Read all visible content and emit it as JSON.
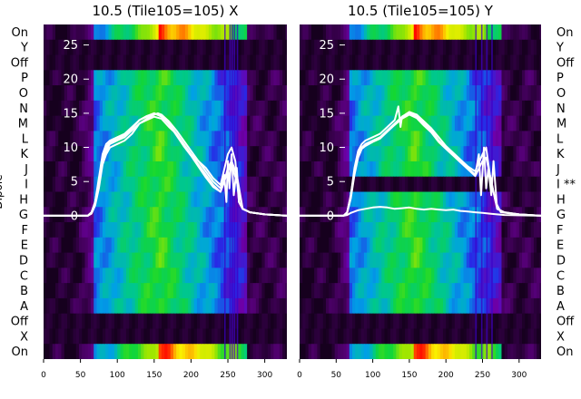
{
  "chart_data": [
    {
      "type": "heatmap",
      "title": "10.5 (Tile105=105) X",
      "ylabel": "Dipole",
      "xlim": [
        0,
        330
      ],
      "x_ticks": [
        0,
        50,
        100,
        150,
        200,
        250,
        300
      ],
      "ylim": [
        -21,
        28
      ],
      "y_ticks": [
        0,
        5,
        10,
        15,
        20,
        25
      ],
      "left_row_labels": [
        "On",
        "Y",
        "Off",
        "P",
        "O",
        "N",
        "M",
        "L",
        "K",
        "J",
        "I",
        "H",
        "G",
        "F",
        "E",
        "D",
        "C",
        "B",
        "A",
        "Off",
        "X",
        "On"
      ],
      "right_row_labels": [],
      "dark_rows": [
        1,
        2,
        19,
        20
      ],
      "spectrum_shape": {
        "start": 65,
        "peak": 155,
        "end": 275
      },
      "spike_channels": [
        245,
        252,
        255,
        258,
        262
      ],
      "series": [
        {
          "values": [
            [
              0,
              0
            ],
            [
              40,
              0
            ],
            [
              60,
              0
            ],
            [
              65,
              0.5
            ],
            [
              70,
              2
            ],
            [
              75,
              5
            ],
            [
              80,
              8
            ],
            [
              85,
              9.5
            ],
            [
              90,
              10.5
            ],
            [
              100,
              11
            ],
            [
              110,
              11.5
            ],
            [
              120,
              12.5
            ],
            [
              130,
              13.5
            ],
            [
              140,
              14.2
            ],
            [
              150,
              14.8
            ],
            [
              155,
              15
            ],
            [
              160,
              14.8
            ],
            [
              170,
              13.8
            ],
            [
              180,
              12.5
            ],
            [
              190,
              11
            ],
            [
              200,
              9.5
            ],
            [
              210,
              8
            ],
            [
              220,
              6.5
            ],
            [
              230,
              5
            ],
            [
              240,
              4
            ],
            [
              245,
              6
            ],
            [
              248,
              2
            ],
            [
              250,
              8
            ],
            [
              252,
              4
            ],
            [
              255,
              9
            ],
            [
              258,
              3
            ],
            [
              262,
              7
            ],
            [
              265,
              2
            ],
            [
              270,
              1
            ],
            [
              280,
              0.5
            ],
            [
              300,
              0.2
            ],
            [
              330,
              0
            ]
          ]
        },
        {
          "values": [
            [
              0,
              0
            ],
            [
              40,
              0
            ],
            [
              60,
              0
            ],
            [
              65,
              0.5
            ],
            [
              70,
              2
            ],
            [
              75,
              5.5
            ],
            [
              80,
              9
            ],
            [
              85,
              10.5
            ],
            [
              90,
              11
            ],
            [
              100,
              11.5
            ],
            [
              110,
              12
            ],
            [
              120,
              13
            ],
            [
              130,
              14
            ],
            [
              140,
              14.5
            ],
            [
              150,
              15
            ],
            [
              160,
              14.5
            ],
            [
              170,
              13.5
            ],
            [
              180,
              12
            ],
            [
              190,
              10.5
            ],
            [
              200,
              9
            ],
            [
              210,
              7.5
            ],
            [
              220,
              6
            ],
            [
              230,
              4.5
            ],
            [
              240,
              3.5
            ],
            [
              245,
              5
            ],
            [
              250,
              7
            ],
            [
              255,
              8
            ],
            [
              262,
              6
            ],
            [
              270,
              1
            ],
            [
              280,
              0.5
            ],
            [
              300,
              0.2
            ],
            [
              330,
              0
            ]
          ]
        },
        {
          "values": [
            [
              0,
              0
            ],
            [
              40,
              0
            ],
            [
              60,
              0
            ],
            [
              65,
              0.3
            ],
            [
              70,
              1.5
            ],
            [
              75,
              4
            ],
            [
              80,
              7.5
            ],
            [
              85,
              9
            ],
            [
              90,
              10
            ],
            [
              100,
              10.5
            ],
            [
              110,
              11
            ],
            [
              120,
              12
            ],
            [
              130,
              13.5
            ],
            [
              140,
              14
            ],
            [
              150,
              14.5
            ],
            [
              160,
              14.2
            ],
            [
              170,
              13
            ],
            [
              180,
              12
            ],
            [
              190,
              10.5
            ],
            [
              200,
              9
            ],
            [
              210,
              8
            ],
            [
              220,
              7
            ],
            [
              230,
              5.5
            ],
            [
              240,
              4.5
            ],
            [
              250,
              9
            ],
            [
              255,
              10
            ],
            [
              260,
              8
            ],
            [
              265,
              2
            ],
            [
              270,
              1
            ],
            [
              280,
              0.5
            ],
            [
              300,
              0.2
            ],
            [
              330,
              0
            ]
          ]
        },
        {
          "values": [
            [
              0,
              0
            ],
            [
              40,
              0
            ],
            [
              60,
              0
            ],
            [
              65,
              0.4
            ],
            [
              70,
              2
            ],
            [
              75,
              5
            ],
            [
              80,
              8.5
            ],
            [
              85,
              10
            ],
            [
              90,
              10.8
            ],
            [
              100,
              11.2
            ],
            [
              110,
              11.8
            ],
            [
              120,
              12.8
            ],
            [
              130,
              14
            ],
            [
              140,
              14.6
            ],
            [
              150,
              15
            ],
            [
              160,
              14.6
            ],
            [
              170,
              13.4
            ],
            [
              180,
              11.8
            ],
            [
              190,
              10.2
            ],
            [
              200,
              8.8
            ],
            [
              210,
              7.2
            ],
            [
              220,
              5.6
            ],
            [
              230,
              4.2
            ],
            [
              240,
              3.5
            ],
            [
              250,
              6.5
            ],
            [
              255,
              7.5
            ],
            [
              262,
              5
            ],
            [
              270,
              1
            ],
            [
              280,
              0.5
            ],
            [
              300,
              0.2
            ],
            [
              330,
              0
            ]
          ]
        }
      ]
    },
    {
      "type": "heatmap",
      "title": "10.5 (Tile105=105) Y",
      "ylabel": "",
      "xlim": [
        0,
        330
      ],
      "x_ticks": [
        0,
        50,
        100,
        150,
        200,
        250,
        300
      ],
      "ylim": [
        -21,
        28
      ],
      "y_ticks": [
        0,
        5,
        10,
        15,
        20,
        25
      ],
      "left_row_labels": [],
      "right_row_labels": [
        "On",
        "Y",
        "Off",
        "P",
        "O",
        "N",
        "M",
        "L",
        "K",
        "J",
        "I **",
        "H",
        "G",
        "F",
        "E",
        "D",
        "C",
        "B",
        "A",
        "Off",
        "X",
        "On"
      ],
      "dark_rows": [
        1,
        2,
        10,
        19,
        20
      ],
      "spectrum_shape": {
        "start": 65,
        "peak": 155,
        "end": 275
      },
      "spike_channels": [
        240,
        248,
        255,
        262
      ],
      "series": [
        {
          "values": [
            [
              0,
              0
            ],
            [
              40,
              0
            ],
            [
              60,
              0
            ],
            [
              65,
              0.5
            ],
            [
              70,
              3
            ],
            [
              75,
              6.5
            ],
            [
              80,
              9
            ],
            [
              85,
              10
            ],
            [
              90,
              10.5
            ],
            [
              100,
              11
            ],
            [
              110,
              11.5
            ],
            [
              120,
              12.5
            ],
            [
              130,
              13.5
            ],
            [
              140,
              14.5
            ],
            [
              150,
              15
            ],
            [
              160,
              14.5
            ],
            [
              170,
              13.5
            ],
            [
              180,
              12.5
            ],
            [
              190,
              11
            ],
            [
              200,
              10
            ],
            [
              210,
              9
            ],
            [
              220,
              8
            ],
            [
              230,
              7
            ],
            [
              240,
              6
            ],
            [
              245,
              9
            ],
            [
              248,
              3
            ],
            [
              252,
              10
            ],
            [
              255,
              4
            ],
            [
              258,
              7
            ],
            [
              262,
              3
            ],
            [
              265,
              8
            ],
            [
              270,
              1
            ],
            [
              280,
              0.5
            ],
            [
              300,
              0.2
            ],
            [
              330,
              0
            ]
          ]
        },
        {
          "values": [
            [
              0,
              0
            ],
            [
              40,
              0
            ],
            [
              60,
              0
            ],
            [
              65,
              0.5
            ],
            [
              70,
              3
            ],
            [
              75,
              7
            ],
            [
              80,
              9.5
            ],
            [
              85,
              10.5
            ],
            [
              90,
              11
            ],
            [
              100,
              11.5
            ],
            [
              110,
              12
            ],
            [
              120,
              13
            ],
            [
              130,
              14
            ],
            [
              135,
              16
            ],
            [
              138,
              13
            ],
            [
              140,
              14.5
            ],
            [
              150,
              15.2
            ],
            [
              160,
              14.8
            ],
            [
              170,
              13.8
            ],
            [
              180,
              12.8
            ],
            [
              190,
              11.5
            ],
            [
              200,
              10.2
            ],
            [
              210,
              9.2
            ],
            [
              220,
              8.2
            ],
            [
              230,
              7.2
            ],
            [
              240,
              6.5
            ],
            [
              250,
              9
            ],
            [
              255,
              10
            ],
            [
              260,
              6
            ],
            [
              268,
              2
            ],
            [
              275,
              0.5
            ],
            [
              300,
              0.2
            ],
            [
              330,
              0
            ]
          ]
        },
        {
          "values": [
            [
              0,
              0
            ],
            [
              40,
              0
            ],
            [
              60,
              0
            ],
            [
              65,
              0.4
            ],
            [
              70,
              2.5
            ],
            [
              75,
              6
            ],
            [
              80,
              8.5
            ],
            [
              85,
              9.8
            ],
            [
              90,
              10.2
            ],
            [
              100,
              10.8
            ],
            [
              110,
              11.3
            ],
            [
              120,
              12.3
            ],
            [
              130,
              13.3
            ],
            [
              140,
              14.2
            ],
            [
              150,
              14.8
            ],
            [
              160,
              14.3
            ],
            [
              170,
              13.2
            ],
            [
              180,
              12.2
            ],
            [
              190,
              10.8
            ],
            [
              200,
              9.8
            ],
            [
              210,
              8.8
            ],
            [
              220,
              7.8
            ],
            [
              230,
              6.8
            ],
            [
              240,
              5.8
            ],
            [
              250,
              8
            ],
            [
              255,
              8.5
            ],
            [
              262,
              5
            ],
            [
              270,
              1
            ],
            [
              280,
              0.5
            ],
            [
              300,
              0.2
            ],
            [
              330,
              0
            ]
          ]
        },
        {
          "values": [
            [
              0,
              0
            ],
            [
              40,
              0
            ],
            [
              60,
              0
            ],
            [
              65,
              0.1
            ],
            [
              70,
              0.4
            ],
            [
              80,
              0.8
            ],
            [
              90,
              1
            ],
            [
              100,
              1.2
            ],
            [
              110,
              1.3
            ],
            [
              120,
              1.2
            ],
            [
              130,
              1
            ],
            [
              140,
              1.1
            ],
            [
              150,
              1.2
            ],
            [
              160,
              1
            ],
            [
              170,
              0.9
            ],
            [
              180,
              1
            ],
            [
              190,
              0.9
            ],
            [
              200,
              0.8
            ],
            [
              210,
              0.9
            ],
            [
              220,
              0.7
            ],
            [
              230,
              0.6
            ],
            [
              240,
              0.5
            ],
            [
              250,
              0.4
            ],
            [
              260,
              0.3
            ],
            [
              270,
              0.2
            ],
            [
              280,
              0.1
            ],
            [
              330,
              0
            ]
          ]
        }
      ]
    }
  ]
}
